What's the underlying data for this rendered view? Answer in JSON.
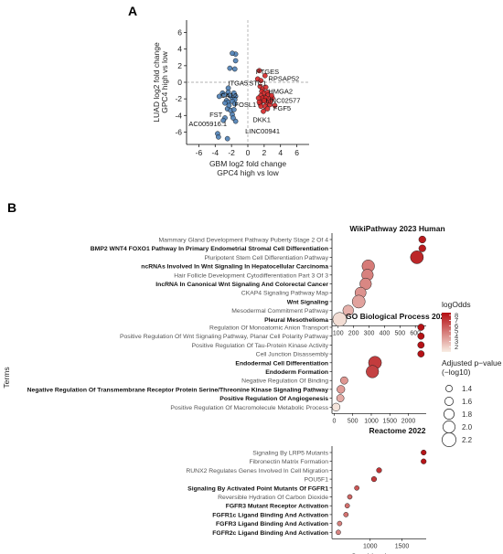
{
  "panel_a_label": "A",
  "panel_b_label": "B",
  "chart_data": [
    {
      "type": "scatter",
      "panel": "A",
      "xlabel": [
        "GBM log2 fold change",
        "GPC4 high vs low"
      ],
      "ylabel": [
        "LUAD log2 fold change",
        "GPC4 high vs low"
      ],
      "xlim": [
        -7.5,
        7.5
      ],
      "ylim": [
        -7.5,
        7.5
      ],
      "xticks": [
        "-6",
        "-4",
        "-2",
        "0",
        "2",
        "4",
        "6"
      ],
      "yticks": [
        "6",
        "4",
        "2",
        "0",
        "-2",
        "-4",
        "-6"
      ],
      "grid": false,
      "series": [
        {
          "color": "#4e7fb5",
          "points": [
            [
              -1.5,
              3.4
            ],
            [
              -1.9,
              3.5
            ],
            [
              -1.5,
              2.6
            ],
            [
              -2.2,
              1.7
            ],
            [
              -1.6,
              1.6
            ],
            [
              -2.4,
              -0.7
            ],
            [
              -3.1,
              -1.3
            ],
            [
              -2.9,
              -1.5
            ],
            [
              -3.5,
              -1.7
            ],
            [
              -2.4,
              -1.2
            ],
            [
              -2.2,
              -1.6
            ],
            [
              -1.9,
              -1.9
            ],
            [
              -1.7,
              -1.3
            ],
            [
              -1.5,
              -1.7
            ],
            [
              -1.6,
              -2.1
            ],
            [
              -2.6,
              -2.2
            ],
            [
              -2.4,
              -2.4
            ],
            [
              -1.9,
              -2.3
            ],
            [
              -1.6,
              -2.6
            ],
            [
              -2.8,
              -2.5
            ],
            [
              -2.5,
              -3.2
            ],
            [
              -2.1,
              -3.4
            ],
            [
              -1.7,
              -3.3
            ],
            [
              -1.9,
              -3.9
            ],
            [
              -2.8,
              -4.3
            ],
            [
              -3.0,
              -4.6
            ],
            [
              -1.5,
              -4.7
            ],
            [
              -3.7,
              -6.2
            ],
            [
              -3.6,
              -6.6
            ],
            [
              -2.5,
              -6.8
            ],
            [
              -1.8,
              -4.3
            ],
            [
              -2.3,
              -2.8
            ]
          ]
        },
        {
          "color": "#d62728",
          "points": [
            [
              1.4,
              1.4
            ],
            [
              1.2,
              0.4
            ],
            [
              1.6,
              0.2
            ],
            [
              2.1,
              0.8
            ],
            [
              1.5,
              -0.5
            ],
            [
              1.8,
              -0.8
            ],
            [
              2.2,
              -0.6
            ],
            [
              1.7,
              -1.1
            ],
            [
              2.0,
              -1.3
            ],
            [
              2.4,
              -1.2
            ],
            [
              1.6,
              -1.6
            ],
            [
              2.1,
              -1.8
            ],
            [
              2.5,
              -1.5
            ],
            [
              1.9,
              -2.0
            ],
            [
              2.6,
              -2.0
            ],
            [
              3.0,
              -1.9
            ],
            [
              1.7,
              -2.3
            ],
            [
              2.3,
              -2.5
            ],
            [
              2.1,
              -2.9
            ],
            [
              1.5,
              -2.6
            ],
            [
              2.7,
              -2.7
            ],
            [
              3.3,
              -2.8
            ],
            [
              2.9,
              -1.6
            ],
            [
              1.8,
              -1.9
            ],
            [
              2.2,
              -1.9
            ],
            [
              2.0,
              -2.2
            ],
            [
              1.6,
              -2.9
            ],
            [
              2.4,
              -3.2
            ],
            [
              1.9,
              -3.5
            ],
            [
              1.3,
              -1.9
            ],
            [
              1.4,
              -2.4
            ],
            [
              2.8,
              -2.3
            ]
          ]
        }
      ],
      "annotations": [
        {
          "text": "PTGES",
          "x": 2.4,
          "y": 1.0
        },
        {
          "text": "RPSAP52",
          "x": 4.4,
          "y": 0.15
        },
        {
          "text": "ITGA5",
          "x": -1.2,
          "y": -0.4
        },
        {
          "text": "STC1",
          "x": 1.2,
          "y": -0.4
        },
        {
          "text": "HMGA2",
          "x": 4.0,
          "y": -1.4
        },
        {
          "text": "CA12",
          "x": -2.3,
          "y": -1.9
        },
        {
          "text": "LINC02577",
          "x": 4.3,
          "y": -2.5
        },
        {
          "text": "FOSL1",
          "x": -0.3,
          "y": -3.0
        },
        {
          "text": "FGF5",
          "x": 4.2,
          "y": -3.4
        },
        {
          "text": "FST",
          "x": -3.9,
          "y": -4.2
        },
        {
          "text": "AC005916.1",
          "x": -4.9,
          "y": -5.3
        },
        {
          "text": "DKK1",
          "x": 1.7,
          "y": -4.8
        },
        {
          "text": "LINC00941",
          "x": 1.8,
          "y": -6.2
        }
      ]
    },
    {
      "type": "scatter",
      "panel": "B",
      "title": "WikiPathway 2023 Human",
      "xlim": [
        60,
        670
      ],
      "xticks": [
        100,
        200,
        300,
        400,
        500,
        600
      ],
      "terms": [
        {
          "label": "Mammary Gland Development Pathway Puberty Stage 2 Of 4",
          "score": 645,
          "logodds": 8.0,
          "p": 1.45,
          "bold": false
        },
        {
          "label": "BMP2 WNT4 FOXO1 Pathway In Primary Endometrial Stromal Cell Differentiation",
          "score": 645,
          "logodds": 8.0,
          "p": 1.45,
          "bold": true
        },
        {
          "label": "Pluripotent Stem Cell Differentiation Pathway",
          "score": 610,
          "logodds": 7.6,
          "p": 2.1,
          "bold": false
        },
        {
          "label": "ncRNAs Involved In Wnt Signaling In Hepatocellular Carcinoma",
          "score": 295,
          "logodds": 4.8,
          "p": 2.05,
          "bold": true
        },
        {
          "label": "Hair Follicle Development Cytodifferentiation Part 3 Of 3",
          "score": 290,
          "logodds": 4.6,
          "p": 1.95,
          "bold": false
        },
        {
          "label": "IncRNA In Canonical Wnt Signaling And Colorectal Cancer",
          "score": 278,
          "logodds": 4.4,
          "p": 1.95,
          "bold": true
        },
        {
          "label": "CKAP4 Signaling Pathway Map",
          "score": 245,
          "logodds": 4.0,
          "p": 1.9,
          "bold": false
        },
        {
          "label": "Wnt Signaling",
          "score": 233,
          "logodds": 3.5,
          "p": 2.1,
          "bold": true
        },
        {
          "label": "Mesodermal Commitment Pathway",
          "score": 165,
          "logodds": 3.0,
          "p": 1.85,
          "bold": false
        },
        {
          "label": "Pleural Mesothelioma",
          "score": 110,
          "logodds": 1.5,
          "p": 2.2,
          "bold": true
        }
      ]
    },
    {
      "type": "scatter",
      "panel": "B",
      "title": "GO Biological Process 2023",
      "xlim": [
        -60,
        2480
      ],
      "xticks": [
        0,
        500,
        1000,
        1500,
        2000
      ],
      "terms": [
        {
          "label": "Regulation Of Monoatomic Anion Transport",
          "score": 2340,
          "logodds": 8.3,
          "p": 1.4,
          "bold": false
        },
        {
          "label": "Positive Regulation Of Wnt Signaling Pathway, Planar Cell Polarity Pathway",
          "score": 2340,
          "logodds": 8.3,
          "p": 1.4,
          "bold": false
        },
        {
          "label": "Positive Regulation Of Tau-Protein Kinase Activity",
          "score": 2340,
          "logodds": 8.3,
          "p": 1.4,
          "bold": false
        },
        {
          "label": "Cell Junction Disassembly",
          "score": 2340,
          "logodds": 8.3,
          "p": 1.4,
          "bold": false
        },
        {
          "label": "Endodermal Cell Differentiation",
          "score": 1100,
          "logodds": 6.9,
          "p": 2.1,
          "bold": true
        },
        {
          "label": "Endoderm Formation",
          "score": 1030,
          "logodds": 6.7,
          "p": 2.05,
          "bold": true
        },
        {
          "label": "Negative Regulation Of Binding",
          "score": 270,
          "logodds": 3.9,
          "p": 1.5,
          "bold": false
        },
        {
          "label": "Negative Regulation Of Transmembrane Receptor Protein Serine/Threonine Kinase Signaling Pathway",
          "score": 180,
          "logodds": 3.7,
          "p": 1.55,
          "bold": true
        },
        {
          "label": "Positive Regulation Of Angiogenesis",
          "score": 165,
          "logodds": 3.2,
          "p": 1.5,
          "bold": true
        },
        {
          "label": "Positive Regulation Of Macromolecule Metabolic Process",
          "score": 50,
          "logodds": 1.3,
          "p": 1.55,
          "bold": false
        }
      ]
    },
    {
      "type": "scatter",
      "panel": "B",
      "title": "Reactome 2022",
      "xlabel": "Combined score",
      "xlim": [
        400,
        1880
      ],
      "xticks": [
        1000,
        1500
      ],
      "terms": [
        {
          "label": "Signaling By LRP5 Mutants",
          "score": 1840,
          "logodds": 8.2,
          "p": 1.25,
          "bold": false
        },
        {
          "label": "Fibronectin Matrix Formation",
          "score": 1840,
          "logodds": 8.2,
          "p": 1.25,
          "bold": false
        },
        {
          "label": "RUNX2 Regulates Genes Involved In Cell Migration",
          "score": 1140,
          "logodds": 7.2,
          "p": 1.25,
          "bold": false
        },
        {
          "label": "POU5F1",
          "score": 1060,
          "logodds": 7.0,
          "p": 1.25,
          "bold": false
        },
        {
          "label": "Signaling By Activated Point Mutants Of FGFR1",
          "score": 790,
          "logodds": 6.0,
          "p": 1.2,
          "bold": true
        },
        {
          "label": "Reversible Hydration Of Carbon Dioxide",
          "score": 680,
          "logodds": 5.4,
          "p": 1.2,
          "bold": false
        },
        {
          "label": "FGFR3 Mutant Receptor Activation",
          "score": 640,
          "logodds": 5.2,
          "p": 1.2,
          "bold": true
        },
        {
          "label": "FGFR1c Ligand Binding And Activation",
          "score": 620,
          "logodds": 5.1,
          "p": 1.2,
          "bold": true
        },
        {
          "label": "FGFR3 Ligand Binding And Activation",
          "score": 520,
          "logodds": 4.6,
          "p": 1.2,
          "bold": true
        },
        {
          "label": "FGFR2c Ligand Binding And Activation",
          "score": 500,
          "logodds": 4.5,
          "p": 1.2,
          "bold": true
        }
      ]
    }
  ],
  "y_axis_label": "Terms",
  "legend": {
    "color_title": "logOdds",
    "color_ticks": [
      "8",
      "7",
      "6",
      "5",
      "4",
      "3",
      "2"
    ],
    "color_range": [
      1,
      8.5
    ],
    "color_low": "#f8ede3",
    "color_high": "#b40c10",
    "size_title": [
      "Adjusted p−value",
      "(−log10)"
    ],
    "size_items": [
      {
        "label": "1.4",
        "value": 1.4
      },
      {
        "label": "1.6",
        "value": 1.6
      },
      {
        "label": "1.8",
        "value": 1.8
      },
      {
        "label": "2.0",
        "value": 2.0
      },
      {
        "label": "2.2",
        "value": 2.2
      }
    ]
  }
}
